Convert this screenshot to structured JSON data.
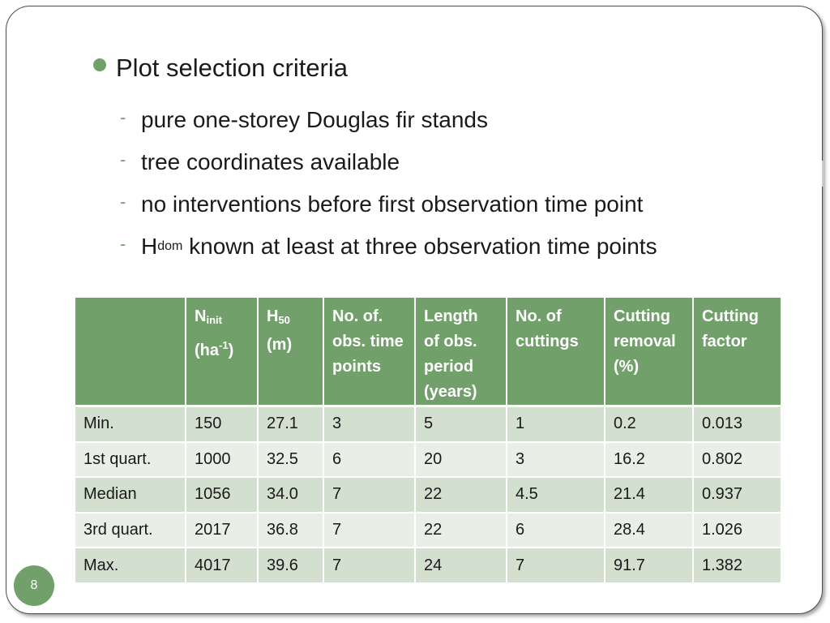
{
  "slide": {
    "title": "Plot selection criteria",
    "criteria": [
      {
        "text": "pure one-storey Douglas fir stands"
      },
      {
        "text": "tree coordinates available"
      },
      {
        "text": "no interventions before first observation time point"
      },
      {
        "prefix": "H",
        "sub": "dom",
        "text": " known at least at three observation time points"
      }
    ],
    "page_number": "8",
    "accent_color": "#72a06b"
  },
  "table": {
    "headers": [
      {
        "main": ""
      },
      {
        "main": "N",
        "sub": "init",
        "unit_pre": "(ha",
        "sup": "-1",
        "unit_post": ")"
      },
      {
        "main": "H",
        "sub": "50",
        "unit": "(m)"
      },
      {
        "main": "No. of. obs. time points"
      },
      {
        "main": "Length of obs. period (years)"
      },
      {
        "main": "No. of cuttings"
      },
      {
        "main": "Cutting removal (%)"
      },
      {
        "main": "Cutting factor"
      }
    ],
    "rows": [
      [
        "Min.",
        "150",
        "27.1",
        "3",
        "5",
        "1",
        "0.2",
        "0.013"
      ],
      [
        "1st quart.",
        "1000",
        "32.5",
        "6",
        "20",
        "3",
        "16.2",
        "0.802"
      ],
      [
        "Median",
        "1056",
        "34.0",
        "7",
        "22",
        "4.5",
        "21.4",
        "0.937"
      ],
      [
        "3rd quart.",
        "2017",
        "36.8",
        "7",
        "22",
        "6",
        "28.4",
        "1.026"
      ],
      [
        "Max.",
        "4017",
        "39.6",
        "7",
        "24",
        "7",
        "91.7",
        "1.382"
      ]
    ]
  }
}
